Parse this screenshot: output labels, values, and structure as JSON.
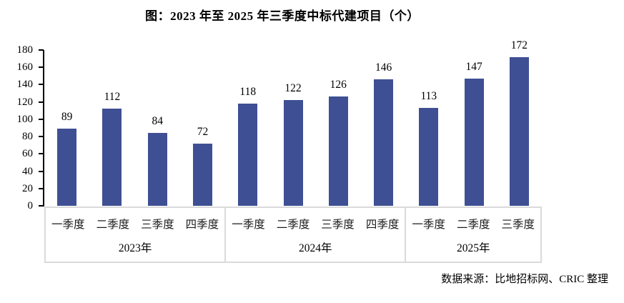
{
  "source_note": "数据来源：比地招标网、CRIC 整理",
  "chart_data": {
    "type": "bar",
    "title": "图：2023 年至 2025 年三季度中标代建项目（个）",
    "xlabel": "",
    "ylabel": "",
    "ylim": [
      0,
      180
    ],
    "ytick_step": 20,
    "grid": false,
    "legend": "none",
    "bar_color": "#3e5093",
    "axis_color": "#000000",
    "box_border_color": "#dadada",
    "groups": [
      {
        "year": "2023年",
        "quarters": [
          "一季度",
          "二季度",
          "三季度",
          "四季度"
        ],
        "values": [
          89,
          112,
          84,
          72
        ]
      },
      {
        "year": "2024年",
        "quarters": [
          "一季度",
          "二季度",
          "三季度",
          "四季度"
        ],
        "values": [
          118,
          122,
          126,
          146
        ]
      },
      {
        "year": "2025年",
        "quarters": [
          "一季度",
          "二季度",
          "三季度"
        ],
        "values": [
          113,
          147,
          172
        ]
      }
    ]
  }
}
